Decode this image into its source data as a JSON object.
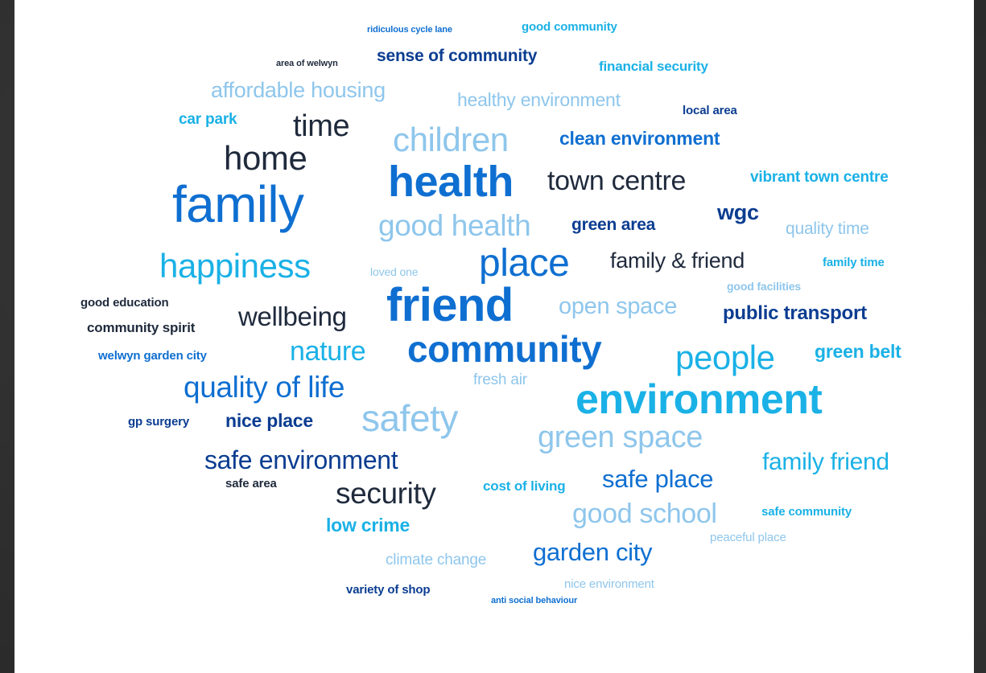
{
  "palette": {
    "dark": "#1f2a3c",
    "navy": "#0b3d91",
    "blue": "#0f6fd1",
    "cyan": "#1ab1e6",
    "light": "#8ec6ec",
    "background": "#ffffff"
  },
  "words": [
    {
      "id": "w01",
      "text": "ridiculous cycle lane"
    },
    {
      "id": "w02",
      "text": "good community"
    },
    {
      "id": "w03",
      "text": "area of welwyn"
    },
    {
      "id": "w04",
      "text": "sense of community"
    },
    {
      "id": "w05",
      "text": "financial security"
    },
    {
      "id": "w06",
      "text": "affordable housing"
    },
    {
      "id": "w07",
      "text": "healthy environment"
    },
    {
      "id": "w08",
      "text": "local area"
    },
    {
      "id": "w09",
      "text": "car park"
    },
    {
      "id": "w10",
      "text": "time"
    },
    {
      "id": "w11",
      "text": "children"
    },
    {
      "id": "w12",
      "text": "clean environment"
    },
    {
      "id": "w13",
      "text": "home"
    },
    {
      "id": "w14",
      "text": "health"
    },
    {
      "id": "w15",
      "text": "town centre"
    },
    {
      "id": "w16",
      "text": "vibrant town centre"
    },
    {
      "id": "w17",
      "text": "family"
    },
    {
      "id": "w18",
      "text": "wgc"
    },
    {
      "id": "w19",
      "text": "good health"
    },
    {
      "id": "w20",
      "text": "green area"
    },
    {
      "id": "w21",
      "text": "quality time"
    },
    {
      "id": "w22",
      "text": "happiness"
    },
    {
      "id": "w23",
      "text": "loved one"
    },
    {
      "id": "w24",
      "text": "place"
    },
    {
      "id": "w25",
      "text": "family & friend"
    },
    {
      "id": "w26",
      "text": "family time"
    },
    {
      "id": "w27",
      "text": "good facilities"
    },
    {
      "id": "w28",
      "text": "good education"
    },
    {
      "id": "w29",
      "text": "friend"
    },
    {
      "id": "w30",
      "text": "open space"
    },
    {
      "id": "w31",
      "text": "community spirit"
    },
    {
      "id": "w32",
      "text": "wellbeing"
    },
    {
      "id": "w33",
      "text": "public transport"
    },
    {
      "id": "w34",
      "text": "community"
    },
    {
      "id": "w35",
      "text": "welwyn garden city"
    },
    {
      "id": "w36",
      "text": "nature"
    },
    {
      "id": "w37",
      "text": "people"
    },
    {
      "id": "w38",
      "text": "green belt"
    },
    {
      "id": "w39",
      "text": "fresh air"
    },
    {
      "id": "w40",
      "text": "quality of life"
    },
    {
      "id": "w41",
      "text": "environment"
    },
    {
      "id": "w42",
      "text": "gp surgery"
    },
    {
      "id": "w43",
      "text": "nice place"
    },
    {
      "id": "w44",
      "text": "safety"
    },
    {
      "id": "w45",
      "text": "green space"
    },
    {
      "id": "w46",
      "text": "safe environment"
    },
    {
      "id": "w47",
      "text": "family friend"
    },
    {
      "id": "w48",
      "text": "safe area"
    },
    {
      "id": "w49",
      "text": "security"
    },
    {
      "id": "w50",
      "text": "cost of living"
    },
    {
      "id": "w51",
      "text": "safe place"
    },
    {
      "id": "w52",
      "text": "good school"
    },
    {
      "id": "w53",
      "text": "safe community"
    },
    {
      "id": "w54",
      "text": "low crime"
    },
    {
      "id": "w55",
      "text": "peaceful place"
    },
    {
      "id": "w56",
      "text": "climate change"
    },
    {
      "id": "w57",
      "text": "garden city"
    },
    {
      "id": "w58",
      "text": "nice environment"
    },
    {
      "id": "w59",
      "text": "variety of shop"
    },
    {
      "id": "w60",
      "text": "anti social behaviour"
    }
  ]
}
